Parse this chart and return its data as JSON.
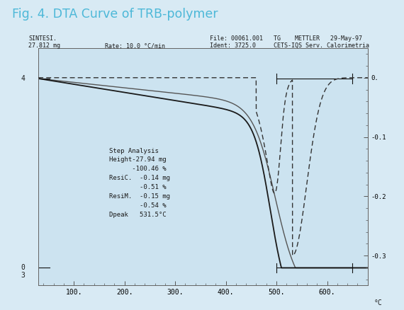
{
  "title": "Fig. 4. DTA Curve of TRB-polymer",
  "title_color": "#4db8d8",
  "bg_color": "#d8eaf4",
  "plot_bg_color": "#cce3f0",
  "xlim": [
    30,
    680
  ],
  "ylim_left": [
    -30.5,
    4.5
  ],
  "ylim_right": [
    -0.35,
    0.05
  ],
  "xticks": [
    100,
    200,
    300,
    400,
    500,
    600
  ],
  "annotation_lines": [
    "Step Analysis",
    "Height-27.94 mg",
    "      -100.46 %",
    "ResiC.  -0.14 mg",
    "        -0.51 %",
    "ResiM.  -0.15 mg",
    "        -0.54 %",
    "Dpeak   531.5°C"
  ],
  "header_left1": "SINTESI.",
  "header_left2": "27.812 mg",
  "header_mid": "Rate: 10.0 °C/min",
  "header_right1": "File: 00061.001   TG    METTLER   29-May-97",
  "header_right2": "Ident: 3725.0     CETS-IQS Serv. Calorimetria",
  "tg_color": "#1a1a1a",
  "dta_color": "#333333",
  "step_color": "#111111"
}
